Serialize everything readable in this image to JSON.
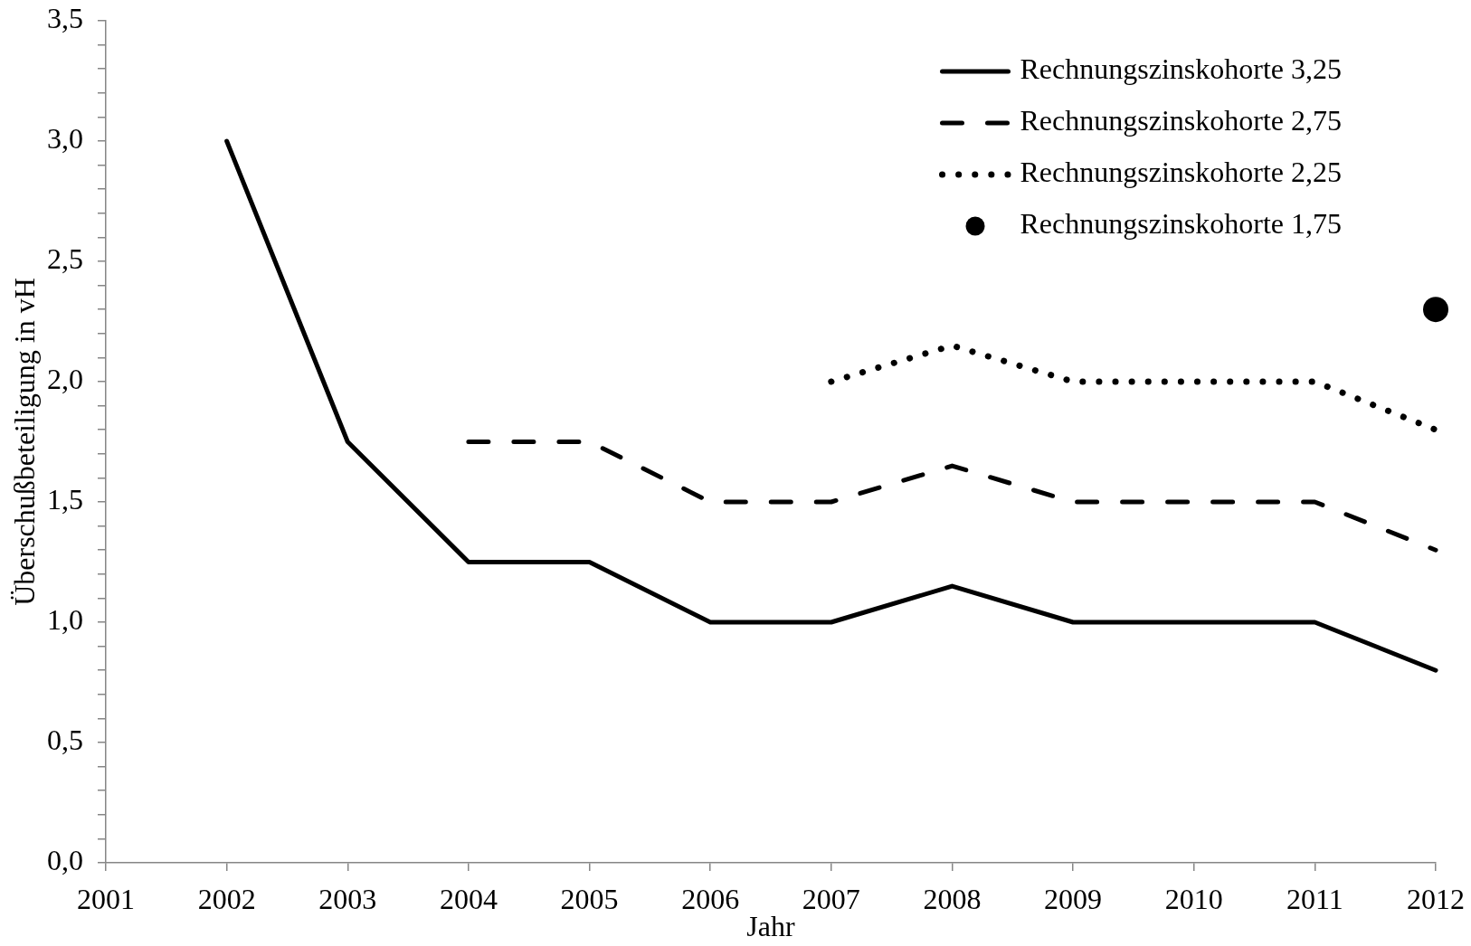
{
  "chart_data": {
    "type": "line",
    "xlabel": "Jahr",
    "ylabel": "Überschußbeteiligung in vH",
    "xlim": [
      2001,
      2012
    ],
    "xticks": [
      2001,
      2002,
      2003,
      2004,
      2005,
      2006,
      2007,
      2008,
      2009,
      2010,
      2011,
      2012
    ],
    "ylim": [
      0,
      3.5
    ],
    "yticks": [
      {
        "value": 0,
        "label": "0,0"
      },
      {
        "value": 0.1,
        "label": null
      },
      {
        "value": 0.2,
        "label": null
      },
      {
        "value": 0.3,
        "label": null
      },
      {
        "value": 0.4,
        "label": null
      },
      {
        "value": 0.5,
        "label": "0,5"
      },
      {
        "value": 0.6,
        "label": null
      },
      {
        "value": 0.7,
        "label": null
      },
      {
        "value": 0.8,
        "label": null
      },
      {
        "value": 0.9,
        "label": null
      },
      {
        "value": 1,
        "label": "1,0"
      },
      {
        "value": 1.1,
        "label": null
      },
      {
        "value": 1.2,
        "label": null
      },
      {
        "value": 1.3,
        "label": null
      },
      {
        "value": 1.4,
        "label": null
      },
      {
        "value": 1.5,
        "label": "1,5"
      },
      {
        "value": 1.6,
        "label": null
      },
      {
        "value": 1.7,
        "label": null
      },
      {
        "value": 1.8,
        "label": null
      },
      {
        "value": 1.9,
        "label": null
      },
      {
        "value": 2,
        "label": "2,0"
      },
      {
        "value": 2.1,
        "label": null
      },
      {
        "value": 2.2,
        "label": null
      },
      {
        "value": 2.3,
        "label": null
      },
      {
        "value": 2.4,
        "label": null
      },
      {
        "value": 2.5,
        "label": "2,5"
      },
      {
        "value": 2.6,
        "label": null
      },
      {
        "value": 2.7,
        "label": null
      },
      {
        "value": 2.8,
        "label": null
      },
      {
        "value": 2.9,
        "label": null
      },
      {
        "value": 3,
        "label": "3,0"
      },
      {
        "value": 3.1,
        "label": null
      },
      {
        "value": 3.2,
        "label": null
      },
      {
        "value": 3.3,
        "label": null
      },
      {
        "value": 3.4,
        "label": null
      },
      {
        "value": 3.5,
        "label": "3,5"
      }
    ],
    "grid": false,
    "legend": "top right",
    "series": [
      {
        "name": "Rechnungszinskohorte 3,25",
        "color": "#000000",
        "line_style": "solid",
        "marker": "none",
        "x": [
          2002,
          2003,
          2004,
          2005,
          2006,
          2007,
          2008,
          2009,
          2010,
          2011,
          2012
        ],
        "values": [
          3.0,
          1.75,
          1.25,
          1.25,
          1.0,
          1.0,
          1.15,
          1.0,
          1.0,
          1.0,
          0.8
        ]
      },
      {
        "name": "Rechnungszinskohorte 2,75",
        "color": "#000000",
        "line_style": "dashed",
        "marker": "none",
        "x": [
          2004,
          2005,
          2006,
          2007,
          2008,
          2009,
          2010,
          2011,
          2012
        ],
        "values": [
          1.75,
          1.75,
          1.5,
          1.5,
          1.65,
          1.5,
          1.5,
          1.5,
          1.3
        ]
      },
      {
        "name": "Rechnungszinskohorte 2,25",
        "color": "#000000",
        "line_style": "dotted",
        "marker": "none",
        "x": [
          2007,
          2008,
          2009,
          2010,
          2011,
          2012
        ],
        "values": [
          2.0,
          2.15,
          2.0,
          2.0,
          2.0,
          1.8
        ]
      },
      {
        "name": "Rechnungszinskohorte 1,75",
        "color": "#000000",
        "type": "scatter",
        "marker": "circle",
        "x": [
          2012
        ],
        "values": [
          2.3
        ]
      }
    ]
  }
}
